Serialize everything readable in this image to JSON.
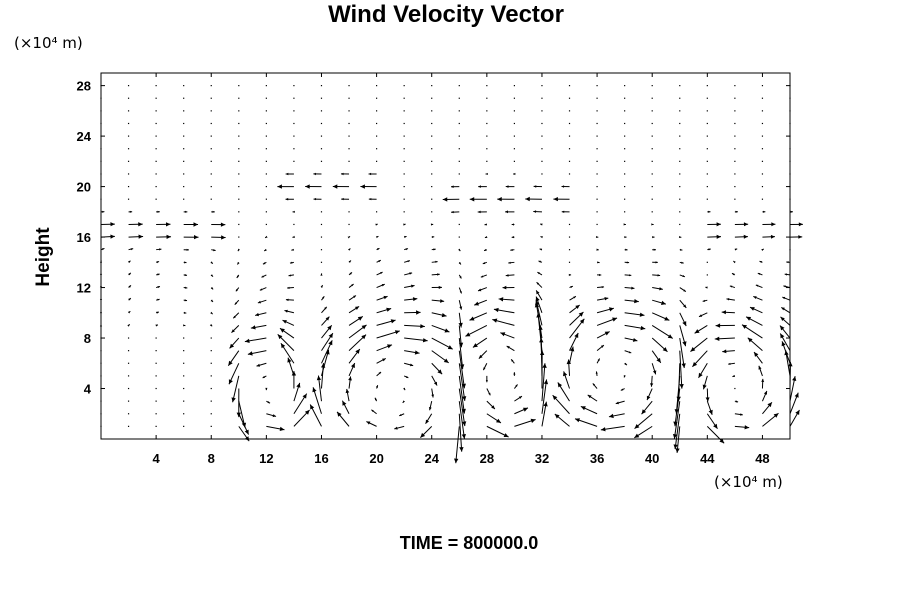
{
  "chart_data": {
    "type": "vector_field",
    "title": "Wind Velocity Vector",
    "ylabel": "Height",
    "x_unit": "(×10⁴ m)",
    "y_unit": "(×10⁴ m)",
    "xlim": [
      0,
      50
    ],
    "ylim": [
      0,
      29
    ],
    "x_ticks": [
      "4",
      "8",
      "12",
      "16",
      "20",
      "24",
      "28",
      "32",
      "36",
      "40",
      "44",
      "48"
    ],
    "y_ticks": [
      "4",
      "8",
      "12",
      "16",
      "20",
      "24",
      "28"
    ],
    "grid_x": [
      0,
      2,
      4,
      6,
      8,
      10,
      12,
      14,
      16,
      18,
      20,
      22,
      24,
      26,
      28,
      30,
      32,
      34,
      36,
      38,
      40,
      42,
      44,
      46,
      48,
      50
    ],
    "grid_y": [
      1,
      2,
      3,
      4,
      5,
      6,
      7,
      8,
      9,
      10,
      11,
      12,
      13,
      14,
      15,
      16,
      17,
      18,
      19,
      20,
      21,
      22,
      23,
      24,
      25,
      26,
      27,
      28
    ],
    "cells": [
      {
        "x0": 10,
        "x1": 14.6,
        "cx": 12.3,
        "cy": 4,
        "rx": 2.3,
        "ry": 3.6,
        "dir": 1
      },
      {
        "x0": 15.6,
        "x1": 27,
        "cx": 21.3,
        "cy": 3.6,
        "rx": 5.7,
        "ry": 4.6,
        "dir": -1
      },
      {
        "x0": 26,
        "x1": 32.4,
        "cx": 29.2,
        "cy": 5,
        "rx": 3.2,
        "ry": 4.4,
        "dir": 1
      },
      {
        "x0": 32.4,
        "x1": 42.4,
        "cx": 37.4,
        "cy": 5.2,
        "rx": 4.8,
        "ry": 4.2,
        "dir": -1
      },
      {
        "x0": 42.4,
        "x1": 50,
        "cx": 46.2,
        "cy": 4.1,
        "rx": 3.6,
        "ry": 4.3,
        "dir": 1
      }
    ],
    "upper_jet": [
      {
        "x0": 0,
        "x1": 9,
        "y": 16.5,
        "u": 1
      },
      {
        "x0": 13,
        "x1": 20,
        "y": 20,
        "u": -1
      },
      {
        "x0": 25,
        "x1": 34,
        "y": 19,
        "u": -1
      },
      {
        "x0": 43,
        "x1": 50,
        "y": 16.5,
        "u": 1
      }
    ],
    "time_label": "TIME = 800000.0"
  }
}
